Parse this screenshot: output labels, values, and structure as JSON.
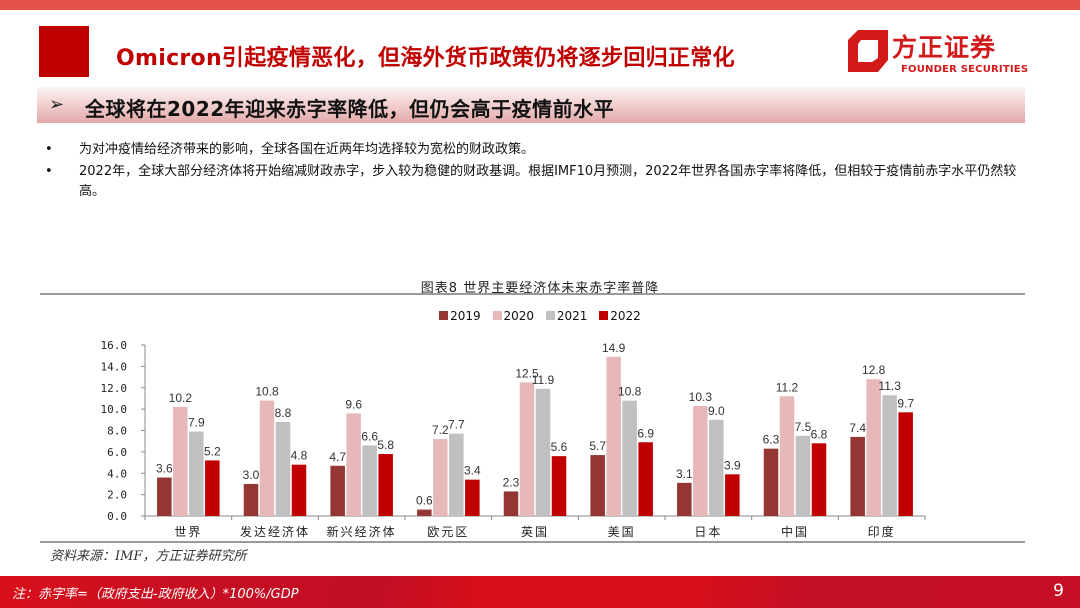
{
  "header": {
    "title": "Omicron引起疫情恶化，但海外货币政策仍将逐步回归正常化",
    "logo_cn": "方正证券",
    "logo_en": "FOUNDER SECURITIES"
  },
  "subheading": {
    "arrow": "➢",
    "text": "全球将在2022年迎来赤字率降低，但仍会高于疫情前水平"
  },
  "bullets": [
    {
      "dot": "•",
      "text": "为对冲疫情给经济带来的影响，全球各国在近两年均选择较为宽松的财政政策。"
    },
    {
      "dot": "•",
      "text": "2022年，全球大部分经济体将开始缩减财政赤字，步入较为稳健的财政基调。根据IMF10月预测，2022年世界各国赤字率将降低，但相较于疫情前赤字水平仍然较高。"
    }
  ],
  "chart_data": {
    "type": "bar",
    "title": "图表8 世界主要经济体未来赤字率普降",
    "xlabel": "",
    "ylabel": "",
    "ylim": [
      0,
      16
    ],
    "yticks": [
      "0.0",
      "2.0",
      "4.0",
      "6.0",
      "8.0",
      "10.0",
      "12.0",
      "14.0",
      "16.0"
    ],
    "grid": false,
    "legend_position": "top",
    "categories": [
      "世界",
      "发达经济体",
      "新兴经济体",
      "欧元区",
      "英国",
      "美国",
      "日本",
      "中国",
      "印度"
    ],
    "series": [
      {
        "name": "2019",
        "color": "#943634",
        "values": [
          3.6,
          3.0,
          4.7,
          0.6,
          2.3,
          5.7,
          3.1,
          6.3,
          7.4
        ]
      },
      {
        "name": "2020",
        "color": "#e6b9b8",
        "values": [
          10.2,
          10.8,
          9.6,
          7.2,
          12.5,
          14.9,
          10.3,
          11.2,
          12.8
        ]
      },
      {
        "name": "2021",
        "color": "#c0c0c0",
        "values": [
          7.9,
          8.8,
          6.6,
          7.7,
          11.9,
          10.8,
          9.0,
          7.5,
          11.3
        ]
      },
      {
        "name": "2022",
        "color": "#c00000",
        "values": [
          5.2,
          4.8,
          5.8,
          3.4,
          5.6,
          6.9,
          3.9,
          6.8,
          9.7
        ]
      }
    ]
  },
  "source": "资料来源：IMF，方正证券研究所",
  "footer": {
    "note": "注：赤字率=（政府支出-政府收入）*100%/GDP",
    "page_number": "9"
  }
}
